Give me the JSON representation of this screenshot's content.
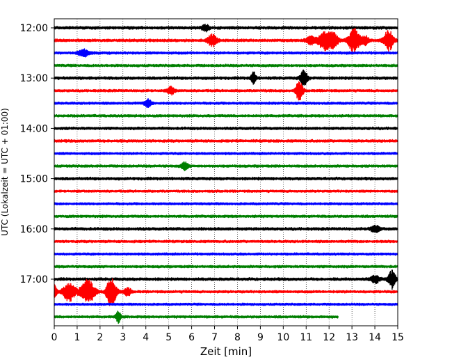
{
  "chart_data": {
    "type": "line",
    "chart_kind": "helicorder seismogram",
    "xlabel": "Zeit  [min]",
    "ylabel": "UTC (Lokalzeit = UTC + 01:00)",
    "xlim": [
      0,
      15
    ],
    "x_ticks": [
      "0",
      "1",
      "2",
      "3",
      "4",
      "5",
      "6",
      "7",
      "8",
      "9",
      "10",
      "11",
      "12",
      "13",
      "14",
      "15"
    ],
    "y_tick_labels": [
      "12:00",
      "13:00",
      "14:00",
      "15:00",
      "16:00",
      "17:00"
    ],
    "grid": "vertical dotted lines at each minute",
    "minutes_per_line": 15,
    "trace_color_cycle": [
      "#000000",
      "#ff0000",
      "#0000ff",
      "#007f00"
    ],
    "traces": [
      {
        "start": "12:00",
        "end_min": 15,
        "base_amplitude": 0.18,
        "events": [
          {
            "t": 6.6,
            "amp": 0.5,
            "width": 0.15
          }
        ]
      },
      {
        "start": "12:15",
        "end_min": 15,
        "base_amplitude": 0.18,
        "events": [
          {
            "t": 6.9,
            "amp": 0.9,
            "width": 0.2
          },
          {
            "t": 11.2,
            "amp": 0.6,
            "width": 0.2
          },
          {
            "t": 11.8,
            "amp": 1.5,
            "width": 0.25
          },
          {
            "t": 12.2,
            "amp": 1.1,
            "width": 0.2
          },
          {
            "t": 13.1,
            "amp": 1.9,
            "width": 0.25
          },
          {
            "t": 13.6,
            "amp": 0.6,
            "width": 0.15
          },
          {
            "t": 14.6,
            "amp": 1.6,
            "width": 0.2
          }
        ]
      },
      {
        "start": "12:30",
        "end_min": 15,
        "base_amplitude": 0.16,
        "events": [
          {
            "t": 1.3,
            "amp": 0.5,
            "width": 0.25
          }
        ]
      },
      {
        "start": "12:45",
        "end_min": 15,
        "base_amplitude": 0.16,
        "events": []
      },
      {
        "start": "13:00",
        "end_min": 15,
        "base_amplitude": 0.18,
        "events": [
          {
            "t": 8.7,
            "amp": 1.0,
            "width": 0.1
          },
          {
            "t": 10.9,
            "amp": 1.2,
            "width": 0.15
          }
        ]
      },
      {
        "start": "13:15",
        "end_min": 15,
        "base_amplitude": 0.16,
        "events": [
          {
            "t": 5.1,
            "amp": 0.6,
            "width": 0.15
          },
          {
            "t": 10.7,
            "amp": 1.5,
            "width": 0.15
          }
        ]
      },
      {
        "start": "13:30",
        "end_min": 15,
        "base_amplitude": 0.16,
        "events": [
          {
            "t": 4.1,
            "amp": 0.6,
            "width": 0.15
          }
        ]
      },
      {
        "start": "13:45",
        "end_min": 15,
        "base_amplitude": 0.16,
        "events": []
      },
      {
        "start": "14:00",
        "end_min": 15,
        "base_amplitude": 0.17,
        "events": []
      },
      {
        "start": "14:15",
        "end_min": 15,
        "base_amplitude": 0.17,
        "events": []
      },
      {
        "start": "14:30",
        "end_min": 15,
        "base_amplitude": 0.15,
        "events": []
      },
      {
        "start": "14:45",
        "end_min": 15,
        "base_amplitude": 0.16,
        "events": [
          {
            "t": 5.7,
            "amp": 0.6,
            "width": 0.15
          }
        ]
      },
      {
        "start": "15:00",
        "end_min": 15,
        "base_amplitude": 0.18,
        "events": []
      },
      {
        "start": "15:15",
        "end_min": 15,
        "base_amplitude": 0.15,
        "events": []
      },
      {
        "start": "15:30",
        "end_min": 15,
        "base_amplitude": 0.15,
        "events": []
      },
      {
        "start": "15:45",
        "end_min": 15,
        "base_amplitude": 0.16,
        "events": []
      },
      {
        "start": "16:00",
        "end_min": 15,
        "base_amplitude": 0.18,
        "events": [
          {
            "t": 14.0,
            "amp": 0.5,
            "width": 0.2
          }
        ]
      },
      {
        "start": "16:15",
        "end_min": 15,
        "base_amplitude": 0.16,
        "events": []
      },
      {
        "start": "16:30",
        "end_min": 15,
        "base_amplitude": 0.15,
        "events": []
      },
      {
        "start": "16:45",
        "end_min": 15,
        "base_amplitude": 0.16,
        "events": []
      },
      {
        "start": "17:00",
        "end_min": 15,
        "base_amplitude": 0.18,
        "events": [
          {
            "t": 14.0,
            "amp": 0.6,
            "width": 0.2
          },
          {
            "t": 14.75,
            "amp": 1.4,
            "width": 0.15
          }
        ]
      },
      {
        "start": "17:15",
        "end_min": 15,
        "base_amplitude": 0.16,
        "events": [
          {
            "t": 0.0,
            "amp": 1.2,
            "width": 0.1
          },
          {
            "t": 0.65,
            "amp": 1.5,
            "width": 0.25
          },
          {
            "t": 1.45,
            "amp": 1.9,
            "width": 0.3
          },
          {
            "t": 2.4,
            "amp": 1.0,
            "width": 0.15
          },
          {
            "t": 2.55,
            "amp": 1.6,
            "width": 0.2
          },
          {
            "t": 3.2,
            "amp": 0.6,
            "width": 0.15
          }
        ]
      },
      {
        "start": "17:30",
        "end_min": 15,
        "base_amplitude": 0.15,
        "events": []
      },
      {
        "start": "17:45",
        "end_min": 12.4,
        "base_amplitude": 0.16,
        "events": [
          {
            "t": 2.8,
            "amp": 0.9,
            "width": 0.1
          }
        ]
      }
    ]
  }
}
